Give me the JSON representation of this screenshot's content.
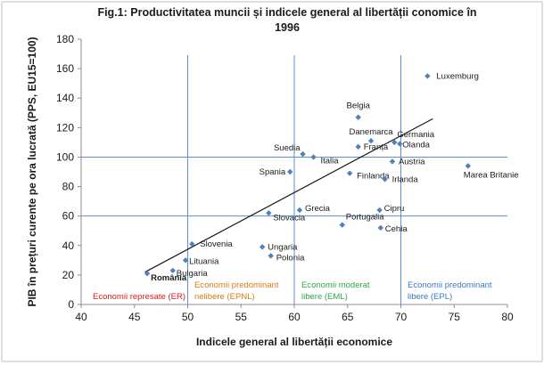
{
  "chart_data": {
    "type": "scatter",
    "title_lines": [
      "Fig.1: Productivitatea muncii și indicele general al libertății conomice în",
      "1996"
    ],
    "xlabel": "Indicele general al libertății economice",
    "ylabel": "PIB în prețuri curente pe ora lucrată (PPS, EU15=100)",
    "xlim": [
      40,
      80
    ],
    "ylim": [
      0,
      180
    ],
    "xticks": [
      40,
      45,
      50,
      55,
      60,
      65,
      70,
      75,
      80
    ],
    "yticks": [
      0,
      20,
      40,
      60,
      80,
      100,
      120,
      140,
      160,
      180
    ],
    "grid": false,
    "reference_lines": {
      "vertical_x": [
        50,
        60,
        70
      ],
      "horizontal_y": [
        60,
        100
      ]
    },
    "points": [
      {
        "name": "Luxemburg",
        "x": 72.5,
        "y": 155
      },
      {
        "name": "Belgia",
        "x": 66,
        "y": 127
      },
      {
        "name": "Danemarca",
        "x": 67.2,
        "y": 111
      },
      {
        "name": "Germania",
        "x": 69.4,
        "y": 110
      },
      {
        "name": "Olanda",
        "x": 69.9,
        "y": 109
      },
      {
        "name": "Suedia",
        "x": 60.8,
        "y": 102
      },
      {
        "name": "Franța",
        "x": 66,
        "y": 107
      },
      {
        "name": "Italia",
        "x": 61.8,
        "y": 100
      },
      {
        "name": "Austria",
        "x": 69.2,
        "y": 97
      },
      {
        "name": "Marea Britanie",
        "x": 76.3,
        "y": 94
      },
      {
        "name": "Spania",
        "x": 59.6,
        "y": 90
      },
      {
        "name": "Finlanda",
        "x": 65.2,
        "y": 89
      },
      {
        "name": "Irlanda",
        "x": 68.5,
        "y": 85
      },
      {
        "name": "Grecia",
        "x": 60.5,
        "y": 64
      },
      {
        "name": "Cipru",
        "x": 68,
        "y": 64
      },
      {
        "name": "Slovacia",
        "x": 57.6,
        "y": 62
      },
      {
        "name": "Portugalia",
        "x": 64.5,
        "y": 54
      },
      {
        "name": "Cehia",
        "x": 68.1,
        "y": 52
      },
      {
        "name": "Slovenia",
        "x": 50.4,
        "y": 41
      },
      {
        "name": "Ungaria",
        "x": 57,
        "y": 39
      },
      {
        "name": "Polonia",
        "x": 57.8,
        "y": 33
      },
      {
        "name": "Lituania",
        "x": 49.8,
        "y": 30
      },
      {
        "name": "Bulgaria",
        "x": 48.6,
        "y": 23
      },
      {
        "name": "România",
        "x": 46.2,
        "y": 21
      }
    ],
    "trendline": {
      "x": [
        46,
        73
      ],
      "y": [
        22,
        126
      ]
    },
    "regions": [
      {
        "lines": [
          "Economii represate (ER)"
        ],
        "color": "#d81b1b"
      },
      {
        "lines": [
          "Economii predominant",
          "nelibere (EPNL)"
        ],
        "color": "#d97a18"
      },
      {
        "lines": [
          "Economii moderat",
          "libere (EML)"
        ],
        "color": "#2ea84a"
      },
      {
        "lines": [
          "Economii predominant",
          "libere (EPL)"
        ],
        "color": "#3a78c4"
      }
    ],
    "colors": {
      "marker": "#4f81bd",
      "reference_line": "#5b8fd0",
      "trendline": "#1a1a1a",
      "axis": "#8c8c8c",
      "frame": "#bfbfbf"
    }
  }
}
